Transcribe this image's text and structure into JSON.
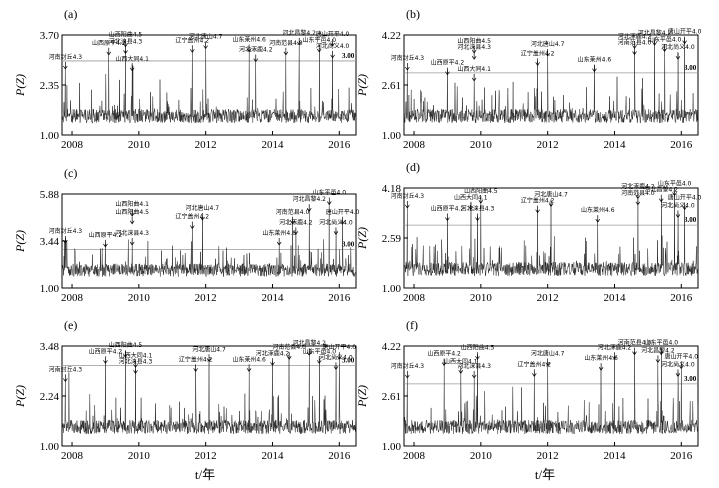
{
  "figure": {
    "xlabel": "t/年"
  },
  "chart_data": [
    {
      "type": "line",
      "panel": "(a)",
      "ylabel": "P(Z)",
      "yticks": [
        "1.00",
        "2.35",
        "3.70"
      ],
      "ylim": [
        1.0,
        3.7
      ],
      "xticks": [
        "2008",
        "2010",
        "2012",
        "2014",
        "2016"
      ],
      "xlim": [
        2007.7,
        2016.5
      ],
      "threshold": 3.0,
      "threshold_label": "3.00",
      "annotations": [
        {
          "label": "河南封丘4.3",
          "x": 2007.8,
          "y": 2.95,
          "ty": 3.0
        },
        {
          "label": "山西原平4.2",
          "x": 2009.1,
          "y": 3.26,
          "ty": 3.38
        },
        {
          "label": "山西阳曲4.5",
          "x": 2009.6,
          "y": 3.48,
          "ty": 3.6
        },
        {
          "label": "河北涞县4.3",
          "x": 2009.6,
          "y": 3.33,
          "ty": 3.42
        },
        {
          "label": "山西大同4.1",
          "x": 2009.8,
          "y": 3.0,
          "ty": 2.95
        },
        {
          "label": "河北唐山4.7",
          "x": 2012.0,
          "y": 3.43,
          "ty": 3.55
        },
        {
          "label": "辽宁盖州4.2",
          "x": 2011.6,
          "y": 3.33,
          "ty": 3.45
        },
        {
          "label": "山东莱州4.6",
          "x": 2013.3,
          "y": 3.33,
          "ty": 3.47
        },
        {
          "label": "河北涿鹿4.2",
          "x": 2013.5,
          "y": 3.1,
          "ty": 3.2
        },
        {
          "label": "河南范县4.0",
          "x": 2014.4,
          "y": 3.26,
          "ty": 3.38
        },
        {
          "label": "河北昌黎4.2",
          "x": 2014.8,
          "y": 3.53,
          "ty": 3.65
        },
        {
          "label": "唐山开平4.0",
          "x": 2015.8,
          "y": 3.56,
          "ty": 3.62
        },
        {
          "label": "山东平邑4.0",
          "x": 2015.4,
          "y": 3.36,
          "ty": 3.46
        },
        {
          "label": "河北尚义4.0",
          "x": 2015.8,
          "y": 3.16,
          "ty": 3.3
        }
      ]
    },
    {
      "type": "line",
      "panel": "(b)",
      "ylabel": "P(Z)",
      "yticks": [
        "1.00",
        "2.61",
        "4.22"
      ],
      "ylim": [
        1.0,
        4.22
      ],
      "xticks": [
        "2008",
        "2010",
        "2012",
        "2014",
        "2016"
      ],
      "xlim": [
        2007.7,
        2016.5
      ],
      "threshold": 3.0,
      "threshold_label": "3.00",
      "annotations": [
        {
          "label": "河南封丘4.3",
          "x": 2007.8,
          "y": 3.25,
          "ty": 3.35
        },
        {
          "label": "山西原平4.2",
          "x": 2009.0,
          "y": 3.15,
          "ty": 3.2
        },
        {
          "label": "山西阳曲4.5",
          "x": 2009.8,
          "y": 3.85,
          "ty": 3.9
        },
        {
          "label": "河北涞县4.3",
          "x": 2009.8,
          "y": 3.6,
          "ty": 3.7
        },
        {
          "label": "山西大同4.1",
          "x": 2009.8,
          "y": 3.0,
          "ty": 3.0
        },
        {
          "label": "河北唐山4.7",
          "x": 2012.0,
          "y": 3.8,
          "ty": 3.8
        },
        {
          "label": "辽宁盖州4.2",
          "x": 2011.7,
          "y": 3.45,
          "ty": 3.5
        },
        {
          "label": "山东莱州4.6",
          "x": 2013.4,
          "y": 3.3,
          "ty": 3.3
        },
        {
          "label": "河北涿鹿4.2",
          "x": 2014.6,
          "y": 3.95,
          "ty": 4.05
        },
        {
          "label": "河南范县4.0",
          "x": 2014.6,
          "y": 3.75,
          "ty": 3.85
        },
        {
          "label": "河北昌黎4.2",
          "x": 2015.2,
          "y": 4.1,
          "ty": 4.15
        },
        {
          "label": "唐山开平4.0",
          "x": 2016.1,
          "y": 4.18,
          "ty": 4.2
        },
        {
          "label": "山东平邑4.0",
          "x": 2015.5,
          "y": 3.95,
          "ty": 3.95
        },
        {
          "label": "河北尚义4.0",
          "x": 2015.9,
          "y": 3.7,
          "ty": 3.7
        }
      ]
    },
    {
      "type": "line",
      "panel": "(c)",
      "ylabel": "P(Z)",
      "yticks": [
        "1.00",
        "3.44",
        "5.88"
      ],
      "ylim": [
        1.0,
        5.88
      ],
      "xticks": [
        "2008",
        "2010",
        "2012",
        "2014",
        "2016"
      ],
      "xlim": [
        2007.7,
        2016.5
      ],
      "threshold": 3.0,
      "threshold_label": "3.00",
      "annotations": [
        {
          "label": "河南封丘4.3",
          "x": 2007.8,
          "y": 3.6,
          "ty": 3.75
        },
        {
          "label": "山西原平4.2",
          "x": 2009.0,
          "y": 3.4,
          "ty": 3.55
        },
        {
          "label": "山西阳曲4.1",
          "x": 2009.8,
          "y": 5.0,
          "ty": 5.15
        },
        {
          "label": "山西阳曲4.5",
          "x": 2009.8,
          "y": 4.6,
          "ty": 4.75
        },
        {
          "label": "河北涞县4.3",
          "x": 2009.8,
          "y": 3.55,
          "ty": 3.65
        },
        {
          "label": "河北唐山4.7",
          "x": 2011.9,
          "y": 4.8,
          "ty": 4.95
        },
        {
          "label": "辽宁盖州4.2",
          "x": 2011.6,
          "y": 4.35,
          "ty": 4.5
        },
        {
          "label": "河南范县4.0",
          "x": 2014.6,
          "y": 4.6,
          "ty": 4.75
        },
        {
          "label": "山东莱州4.6",
          "x": 2014.2,
          "y": 3.5,
          "ty": 3.65
        },
        {
          "label": "河北涿鹿4.2",
          "x": 2014.7,
          "y": 4.0,
          "ty": 4.2
        },
        {
          "label": "山东平邑4.0",
          "x": 2015.7,
          "y": 5.6,
          "ty": 5.75
        },
        {
          "label": "河北昌黎4.2",
          "x": 2015.1,
          "y": 5.2,
          "ty": 5.4
        },
        {
          "label": "唐山开平4.0",
          "x": 2016.1,
          "y": 4.6,
          "ty": 4.75
        },
        {
          "label": "河北尚义4.0",
          "x": 2015.9,
          "y": 4.1,
          "ty": 4.2
        }
      ]
    },
    {
      "type": "line",
      "panel": "(d)",
      "ylabel": "P(Z)",
      "yticks": [
        "1.00",
        "2.59",
        "4.18"
      ],
      "ylim": [
        1.0,
        4.18
      ],
      "xticks": [
        "2008",
        "2010",
        "2012",
        "2014",
        "2016"
      ],
      "xlim": [
        2007.7,
        2016.5
      ],
      "threshold": 3.0,
      "threshold_label": "3.00",
      "annotations": [
        {
          "label": "河南封丘4.3",
          "x": 2007.8,
          "y": 3.65,
          "ty": 3.8
        },
        {
          "label": "山西原平4.2",
          "x": 2009.0,
          "y": 3.3,
          "ty": 3.4
        },
        {
          "label": "山西大同4.1",
          "x": 2009.7,
          "y": 3.8,
          "ty": 3.75
        },
        {
          "label": "山西阳曲4.5",
          "x": 2010.0,
          "y": 3.85,
          "ty": 3.95
        },
        {
          "label": "河北涞县4.3",
          "x": 2009.9,
          "y": 3.35,
          "ty": 3.4
        },
        {
          "label": "河北唐山4.7",
          "x": 2012.1,
          "y": 3.75,
          "ty": 3.85
        },
        {
          "label": "辽宁盖州4.2",
          "x": 2011.7,
          "y": 3.55,
          "ty": 3.65
        },
        {
          "label": "山东莱州4.6",
          "x": 2013.5,
          "y": 3.25,
          "ty": 3.35
        },
        {
          "label": "河北涿鹿4.2",
          "x": 2014.7,
          "y": 4.0,
          "ty": 4.1
        },
        {
          "label": "河南范县4.0",
          "x": 2014.7,
          "y": 3.85,
          "ty": 3.9
        },
        {
          "label": "山东平邑4.0",
          "x": 2015.8,
          "y": 4.05,
          "ty": 4.2
        },
        {
          "label": "河北昌黎4.2",
          "x": 2015.4,
          "y": 3.9,
          "ty": 4.0
        },
        {
          "label": "唐山开平4.0",
          "x": 2016.1,
          "y": 3.65,
          "ty": 3.75
        },
        {
          "label": "河北尚义4.0",
          "x": 2015.9,
          "y": 3.45,
          "ty": 3.5
        }
      ]
    },
    {
      "type": "line",
      "panel": "(e)",
      "ylabel": "P(Z)",
      "yticks": [
        "1.00",
        "2.24",
        "3.48"
      ],
      "ylim": [
        1.0,
        3.48
      ],
      "xticks": [
        "2008",
        "2010",
        "2012",
        "2014",
        "2016"
      ],
      "xlim": [
        2007.7,
        2016.5
      ],
      "threshold": 3.0,
      "threshold_label": "3.00",
      "annotations": [
        {
          "label": "河南封丘4.3",
          "x": 2007.8,
          "y": 2.7,
          "ty": 2.8
        },
        {
          "label": "山西原平4.2",
          "x": 2009.0,
          "y": 3.15,
          "ty": 3.25
        },
        {
          "label": "山西阳曲4.5",
          "x": 2009.6,
          "y": 3.4,
          "ty": 3.4
        },
        {
          "label": "山西大同4.1",
          "x": 2009.9,
          "y": 3.1,
          "ty": 3.15
        },
        {
          "label": "河北涞县4.3",
          "x": 2009.9,
          "y": 2.95,
          "ty": 3.0
        },
        {
          "label": "河北唐山4.7",
          "x": 2012.1,
          "y": 3.2,
          "ty": 3.3
        },
        {
          "label": "辽宁盖州4.2",
          "x": 2011.7,
          "y": 2.95,
          "ty": 3.05
        },
        {
          "label": "山东莱州4.6",
          "x": 2013.3,
          "y": 3.0,
          "ty": 3.05
        },
        {
          "label": "河北涿鹿4.2",
          "x": 2014.0,
          "y": 3.15,
          "ty": 3.2
        },
        {
          "label": "河南范县4.0",
          "x": 2014.5,
          "y": 3.3,
          "ty": 3.35
        },
        {
          "label": "河北昌黎4.2",
          "x": 2015.1,
          "y": 3.45,
          "ty": 3.45
        },
        {
          "label": "山东平邑4.0",
          "x": 2015.4,
          "y": 3.2,
          "ty": 3.25
        },
        {
          "label": "唐山开平4.0",
          "x": 2016.0,
          "y": 3.3,
          "ty": 3.35
        },
        {
          "label": "河北尚义4.0",
          "x": 2015.9,
          "y": 3.05,
          "ty": 3.1
        }
      ]
    },
    {
      "type": "line",
      "panel": "(f)",
      "ylabel": "P(Z)",
      "yticks": [
        "1.00",
        "2.61",
        "4.22"
      ],
      "ylim": [
        1.0,
        4.22
      ],
      "xticks": [
        "2008",
        "2010",
        "2012",
        "2014",
        "2016"
      ],
      "xlim": [
        2007.7,
        2016.5
      ],
      "threshold": 3.0,
      "threshold_label": "3.00",
      "annotations": [
        {
          "label": "河南封丘4.3",
          "x": 2007.8,
          "y": 3.35,
          "ty": 3.45
        },
        {
          "label": "山西原平4.2",
          "x": 2008.9,
          "y": 3.75,
          "ty": 3.85
        },
        {
          "label": "山西大同4.1",
          "x": 2009.4,
          "y": 3.55,
          "ty": 3.6
        },
        {
          "label": "山西阳曲4.5",
          "x": 2009.9,
          "y": 4.0,
          "ty": 4.05
        },
        {
          "label": "河北涞县4.3",
          "x": 2009.8,
          "y": 3.4,
          "ty": 3.45
        },
        {
          "label": "河北唐山4.7",
          "x": 2012.0,
          "y": 3.75,
          "ty": 3.85
        },
        {
          "label": "辽宁盖州4.2",
          "x": 2011.6,
          "y": 3.45,
          "ty": 3.5
        },
        {
          "label": "河北涿鹿4.2",
          "x": 2014.0,
          "y": 3.95,
          "ty": 4.05
        },
        {
          "label": "山东莱州4.6",
          "x": 2013.6,
          "y": 3.6,
          "ty": 3.7
        },
        {
          "label": "河南范县4.0",
          "x": 2014.6,
          "y": 4.1,
          "ty": 4.2
        },
        {
          "label": "山东平邑4.0",
          "x": 2015.4,
          "y": 4.15,
          "ty": 4.2
        },
        {
          "label": "河北昌黎4.2",
          "x": 2015.3,
          "y": 3.85,
          "ty": 3.95
        },
        {
          "label": "唐山开平4.0",
          "x": 2016.0,
          "y": 3.7,
          "ty": 3.75
        },
        {
          "label": "河北尚义4.0",
          "x": 2015.9,
          "y": 3.45,
          "ty": 3.5
        }
      ]
    }
  ]
}
